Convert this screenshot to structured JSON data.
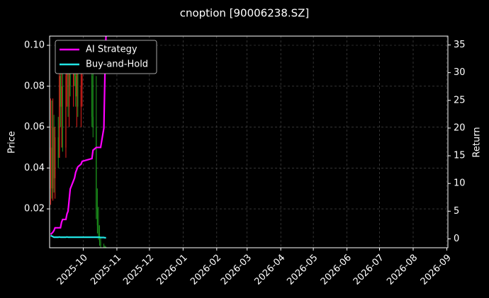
{
  "chart_data": {
    "type": "candlestick",
    "title": "cnoption [90006238.SZ]",
    "ylabel": "Price",
    "y2label": "Return",
    "x": [
      "2025-09-01",
      "2025-09-02",
      "2025-09-03",
      "2025-09-04",
      "2025-09-05",
      "2025-09-08",
      "2025-09-09",
      "2025-09-10",
      "2025-09-11",
      "2025-09-12",
      "2025-09-15",
      "2025-09-16",
      "2025-09-17",
      "2025-09-18",
      "2025-09-19",
      "2025-09-22",
      "2025-09-23",
      "2025-09-24",
      "2025-09-25",
      "2025-09-26",
      "2025-09-29",
      "2025-09-30",
      "2025-10-09",
      "2025-10-10",
      "2025-10-13",
      "2025-10-14",
      "2025-10-15",
      "2025-10-16",
      "2025-10-17",
      "2025-10-20",
      "2025-10-21",
      "2025-10-22"
    ],
    "open": [
      0.03,
      0.05,
      0.03,
      0.06,
      0.035,
      0.055,
      0.045,
      0.085,
      0.07,
      0.08,
      0.05,
      0.085,
      0.09,
      0.07,
      0.095,
      0.08,
      0.09,
      0.085,
      0.075,
      0.09,
      0.07,
      0.08,
      0.085,
      0.065,
      0.06,
      0.02,
      0.012,
      0.008,
      0.004,
      0.002,
      0.0015,
      0.0012
    ],
    "high": [
      0.074,
      0.073,
      0.074,
      0.066,
      0.06,
      0.065,
      0.09,
      0.1,
      0.09,
      0.095,
      0.09,
      0.1,
      0.1,
      0.1,
      0.1,
      0.1,
      0.1,
      0.1,
      0.1,
      0.1,
      0.1,
      0.1,
      0.095,
      0.09,
      0.085,
      0.03,
      0.021,
      0.012,
      0.006,
      0.003,
      0.002,
      0.0015
    ],
    "low": [
      0.022,
      0.025,
      0.024,
      0.028,
      0.025,
      0.04,
      0.045,
      0.06,
      0.05,
      0.048,
      0.045,
      0.07,
      0.065,
      0.06,
      0.075,
      0.07,
      0.08,
      0.07,
      0.06,
      0.065,
      0.06,
      0.07,
      0.06,
      0.055,
      0.015,
      0.008,
      0.005,
      0.002,
      0.001,
      0.001,
      0.001,
      0.001
    ],
    "close": [
      0.05,
      0.03,
      0.06,
      0.035,
      0.055,
      0.045,
      0.085,
      0.07,
      0.08,
      0.05,
      0.085,
      0.09,
      0.07,
      0.095,
      0.08,
      0.09,
      0.085,
      0.075,
      0.09,
      0.07,
      0.08,
      0.085,
      0.065,
      0.06,
      0.02,
      0.012,
      0.008,
      0.004,
      0.002,
      0.0015,
      0.0012,
      0.0011
    ],
    "up_color": "#e8231e",
    "down_color": "#1e9a1e",
    "series": [
      {
        "name": "AI Strategy",
        "color": "#ff00ff",
        "axis": "y2",
        "values": [
          0.8,
          1,
          1.2,
          1.5,
          2,
          2,
          2,
          2,
          3,
          3.5,
          3.5,
          4.5,
          5,
          7,
          9,
          10.5,
          11,
          12,
          12.5,
          13,
          13.5,
          14,
          14.5,
          16,
          16.5,
          16.5,
          16.5,
          16.5,
          16.5,
          20,
          30,
          37
        ]
      },
      {
        "name": "Buy-and-Hold",
        "color": "#22e5e5",
        "axis": "y2",
        "values": [
          0.6,
          0.5,
          0.4,
          0.3,
          0.3,
          0.3,
          0.35,
          0.3,
          0.3,
          0.3,
          0.3,
          0.35,
          0.3,
          0.3,
          0.3,
          0.3,
          0.3,
          0.3,
          0.3,
          0.3,
          0.3,
          0.3,
          0.3,
          0.3,
          0.3,
          0.3,
          0.3,
          0.3,
          0.25,
          0.25,
          0.2,
          0.2
        ]
      }
    ],
    "xlim": [
      "2025-08-31",
      "2026-09-02"
    ],
    "xticks": [
      {
        "value": "2025-10-01",
        "label": "2025-10"
      },
      {
        "value": "2025-11-01",
        "label": "2025-11"
      },
      {
        "value": "2025-12-01",
        "label": "2025-12"
      },
      {
        "value": "2026-01-01",
        "label": "2026-01"
      },
      {
        "value": "2026-02-01",
        "label": "2026-02"
      },
      {
        "value": "2026-03-01",
        "label": "2026-03"
      },
      {
        "value": "2026-04-01",
        "label": "2026-04"
      },
      {
        "value": "2026-05-01",
        "label": "2026-05"
      },
      {
        "value": "2026-06-01",
        "label": "2026-06"
      },
      {
        "value": "2026-07-01",
        "label": "2026-07"
      },
      {
        "value": "2026-08-01",
        "label": "2026-08"
      },
      {
        "value": "2026-09-01",
        "label": "2026-09"
      }
    ],
    "ylim": [
      0.001,
      0.1045
    ],
    "yticks": [
      0.02,
      0.04,
      0.06,
      0.08,
      {
        "value": 0.1,
        "label": "0.10"
      }
    ],
    "y2lim": [
      -1.6,
      36.6
    ],
    "y2ticks": [
      0,
      5,
      10,
      15,
      20,
      25,
      30,
      35
    ],
    "grid": true,
    "legend": "upper left"
  }
}
